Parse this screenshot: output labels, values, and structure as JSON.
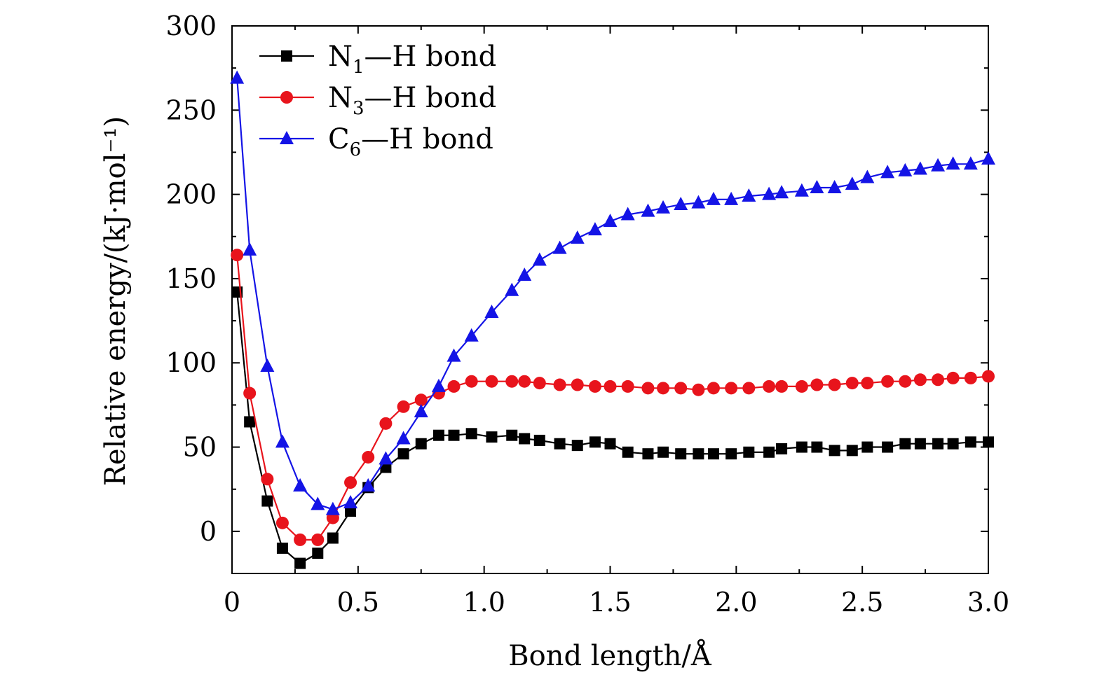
{
  "chart_data": {
    "type": "line",
    "title": "",
    "xlabel": "Bond length/Å",
    "ylabel": "Relative energy/(kJ·mol⁻¹)",
    "xlim": [
      0,
      3.0
    ],
    "ylim": [
      -25,
      300
    ],
    "xticks": [
      0,
      0.5,
      1.0,
      1.5,
      2.0,
      2.5,
      3.0
    ],
    "xtick_labels": [
      "0",
      "0.5",
      "1.0",
      "1.5",
      "2.0",
      "2.5",
      "3.0"
    ],
    "yticks": [
      0,
      50,
      100,
      150,
      200,
      250,
      300
    ],
    "ytick_labels": [
      "0",
      "50",
      "100",
      "150",
      "200",
      "250",
      "300"
    ],
    "grid": false,
    "legend_position": "top-left",
    "x": [
      0.02,
      0.07,
      0.14,
      0.2,
      0.27,
      0.34,
      0.4,
      0.47,
      0.54,
      0.61,
      0.68,
      0.75,
      0.82,
      0.88,
      0.95,
      1.03,
      1.11,
      1.16,
      1.22,
      1.3,
      1.37,
      1.44,
      1.5,
      1.57,
      1.65,
      1.71,
      1.78,
      1.85,
      1.91,
      1.98,
      2.05,
      2.13,
      2.18,
      2.26,
      2.32,
      2.39,
      2.46,
      2.52,
      2.6,
      2.67,
      2.73,
      2.8,
      2.86,
      2.93,
      3.0
    ],
    "series": [
      {
        "name": "N1—H bond",
        "label_main": "N",
        "label_sub": "1",
        "label_rest": "—H  bond",
        "color": "#000000",
        "marker": "square",
        "values": [
          142,
          65,
          18,
          -10,
          -19,
          -13,
          -4,
          12,
          26,
          38,
          46,
          52,
          57,
          57,
          58,
          56,
          57,
          55,
          54,
          52,
          51,
          53,
          52,
          47,
          46,
          47,
          46,
          46,
          46,
          46,
          47,
          47,
          49,
          50,
          50,
          48,
          48,
          50,
          50,
          52,
          52,
          52,
          52,
          53,
          53
        ]
      },
      {
        "name": "N3—H bond",
        "label_main": "N",
        "label_sub": "3",
        "label_rest": "—H  bond",
        "color": "#e8141c",
        "marker": "circle",
        "values": [
          164,
          82,
          31,
          5,
          -5,
          -5,
          8,
          29,
          44,
          64,
          74,
          78,
          82,
          86,
          89,
          89,
          89,
          89,
          88,
          87,
          87,
          86,
          86,
          86,
          85,
          85,
          85,
          84,
          85,
          85,
          85,
          86,
          86,
          86,
          87,
          87,
          88,
          88,
          89,
          89,
          90,
          90,
          91,
          91,
          92
        ]
      },
      {
        "name": "C6—H bond",
        "label_main": "C",
        "label_sub": "6",
        "label_rest": "—H  bond",
        "color": "#1414e6",
        "marker": "triangle",
        "values": [
          269,
          167,
          98,
          53,
          27,
          16,
          13,
          17,
          27,
          43,
          55,
          71,
          86,
          104,
          116,
          130,
          143,
          152,
          161,
          168,
          174,
          179,
          184,
          188,
          190,
          192,
          194,
          195,
          197,
          197,
          199,
          200,
          201,
          202,
          204,
          204,
          206,
          210,
          213,
          214,
          215,
          217,
          218,
          218,
          221
        ]
      }
    ]
  }
}
